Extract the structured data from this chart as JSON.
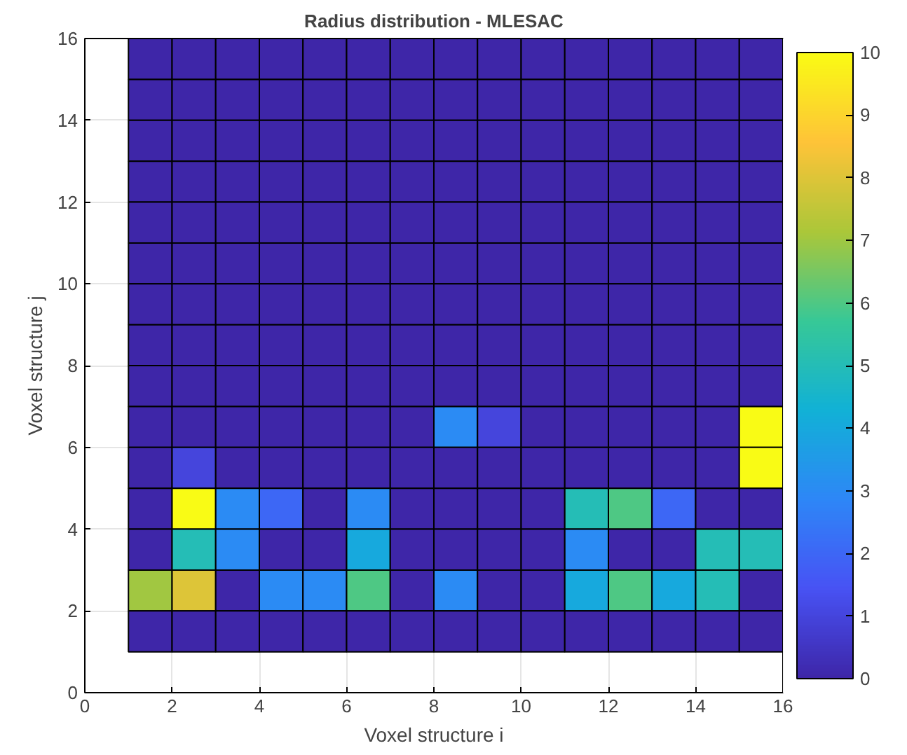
{
  "chart_data": {
    "type": "heatmap",
    "title": "Radius distribution - MLESAC",
    "xlabel": "Voxel structure i",
    "ylabel": "Voxel structure j",
    "x": [
      1.5,
      2.5,
      3.5,
      4.5,
      5.5,
      6.5,
      7.5,
      8.5,
      9.5,
      10.5,
      11.5,
      12.5,
      13.5,
      14.5,
      15.5
    ],
    "y": [
      15.5,
      14.5,
      13.5,
      12.5,
      11.5,
      10.5,
      9.5,
      8.5,
      7.5,
      6.5,
      5.5,
      4.5,
      3.5,
      2.5,
      1.5
    ],
    "cells": [
      [
        0,
        0,
        0,
        0,
        0,
        0,
        0,
        0,
        0,
        0,
        0,
        0,
        0,
        0,
        0
      ],
      [
        0,
        0,
        0,
        0,
        0,
        0,
        0,
        0,
        0,
        0,
        0,
        0,
        0,
        0,
        0
      ],
      [
        0,
        0,
        0,
        0,
        0,
        0,
        0,
        0,
        0,
        0,
        0,
        0,
        0,
        0,
        0
      ],
      [
        0,
        0,
        0,
        0,
        0,
        0,
        0,
        0,
        0,
        0,
        0,
        0,
        0,
        0,
        0
      ],
      [
        0,
        0,
        0,
        0,
        0,
        0,
        0,
        0,
        0,
        0,
        0,
        0,
        0,
        0,
        0
      ],
      [
        0,
        0,
        0,
        0,
        0,
        0,
        0,
        0,
        0,
        0,
        0,
        0,
        0,
        0,
        0
      ],
      [
        0,
        0,
        0,
        0,
        0,
        0,
        0,
        0,
        0,
        0,
        0,
        0,
        0,
        0,
        0
      ],
      [
        0,
        0,
        0,
        0,
        0,
        0,
        0,
        0,
        0,
        0,
        0,
        0,
        0,
        0,
        0
      ],
      [
        0,
        0,
        0,
        0,
        0,
        0,
        0,
        0,
        0,
        0,
        0,
        0,
        0,
        0,
        0
      ],
      [
        0,
        0,
        0,
        0,
        0,
        0,
        0,
        3,
        1,
        0,
        0,
        0,
        0,
        0,
        10
      ],
      [
        0,
        1,
        0,
        0,
        0,
        0,
        0,
        0,
        0,
        0,
        0,
        0,
        0,
        0,
        10
      ],
      [
        0,
        10,
        3,
        2,
        0,
        3,
        0,
        0,
        0,
        0,
        5,
        6,
        2,
        0,
        0
      ],
      [
        0,
        5,
        3,
        0,
        0,
        4,
        0,
        0,
        0,
        0,
        3,
        0,
        0,
        5,
        5
      ],
      [
        7,
        8,
        0,
        3,
        3,
        6,
        0,
        3,
        0,
        0,
        4,
        6,
        4,
        5,
        0
      ],
      [
        0,
        0,
        0,
        0,
        0,
        0,
        0,
        0,
        0,
        0,
        0,
        0,
        0,
        0,
        0
      ]
    ],
    "xlim": [
      0,
      16
    ],
    "ylim": [
      0,
      16
    ],
    "xticks": [
      0,
      2,
      4,
      6,
      8,
      10,
      12,
      14,
      16
    ],
    "yticks": [
      0,
      2,
      4,
      6,
      8,
      10,
      12,
      14,
      16
    ],
    "clim": [
      0,
      10
    ],
    "cticks": [
      0,
      1,
      2,
      3,
      4,
      5,
      6,
      7,
      8,
      9,
      10
    ],
    "grid": true
  }
}
